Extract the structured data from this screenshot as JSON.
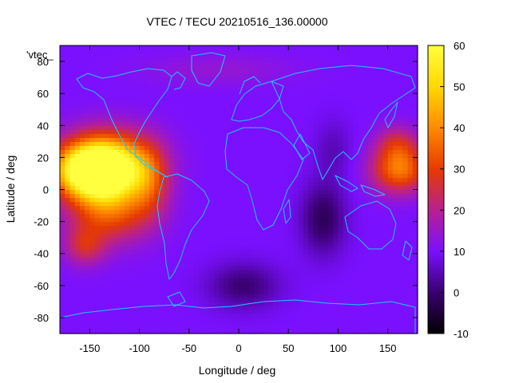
{
  "chart_data": {
    "type": "heatmap",
    "title": "VTEC / TECU 20210516_136.00000",
    "xlabel": "Longitude / deg",
    "ylabel": "Latitude / deg",
    "xlim": [
      -180,
      180
    ],
    "ylim": [
      -90,
      90
    ],
    "xticks": [
      -150,
      -100,
      -50,
      0,
      50,
      100,
      150
    ],
    "yticks": [
      -80,
      -60,
      -40,
      -20,
      0,
      20,
      40,
      60,
      80
    ],
    "legend_entry": "'vtec_",
    "colorbar": {
      "range": [
        -10,
        60
      ],
      "ticks": [
        -10,
        0,
        10,
        20,
        30,
        40,
        50,
        60
      ],
      "palette": [
        "#000000",
        "#3a0070",
        "#7a10ff",
        "#b82090",
        "#e63a00",
        "#ff8a00",
        "#ffd800",
        "#ffff40"
      ]
    },
    "background_value": 10,
    "features": [
      {
        "name": "equatorial-anomaly-pacific",
        "lon": -145,
        "lat": 12,
        "peak": 58,
        "lon_spread": 38,
        "lat_spread": 16
      },
      {
        "name": "pacific-band-north",
        "lon": -130,
        "lat": 18,
        "peak": 28,
        "lon_spread": 45,
        "lat_spread": 20
      },
      {
        "name": "pacific-band-south",
        "lon": -130,
        "lat": -12,
        "peak": 24,
        "lon_spread": 40,
        "lat_spread": 20
      },
      {
        "name": "pacific-southwest",
        "lon": -155,
        "lat": -35,
        "peak": 14,
        "lon_spread": 20,
        "lat_spread": 12
      },
      {
        "name": "central-america",
        "lon": -90,
        "lat": 5,
        "peak": 14,
        "lon_spread": 20,
        "lat_spread": 22
      },
      {
        "name": "western-pacific-band",
        "lon": 162,
        "lat": 12,
        "peak": 26,
        "lon_spread": 28,
        "lat_spread": 14
      },
      {
        "name": "western-pacific-upper",
        "lon": 160,
        "lat": 28,
        "peak": 14,
        "lon_spread": 22,
        "lat_spread": 12
      },
      {
        "name": "indian-ocean-trough",
        "lon": 85,
        "lat": -18,
        "peak": -12,
        "lon_spread": 22,
        "lat_spread": 22
      },
      {
        "name": "south-atlantic-trough",
        "lon": 5,
        "lat": -60,
        "peak": -10,
        "lon_spread": 35,
        "lat_spread": 14
      },
      {
        "name": "asia-trough",
        "lon": 95,
        "lat": 25,
        "peak": -5,
        "lon_spread": 18,
        "lat_spread": 18
      },
      {
        "name": "polar-north",
        "lon": -20,
        "lat": 75,
        "peak": 4,
        "lon_spread": 80,
        "lat_spread": 10
      }
    ]
  }
}
